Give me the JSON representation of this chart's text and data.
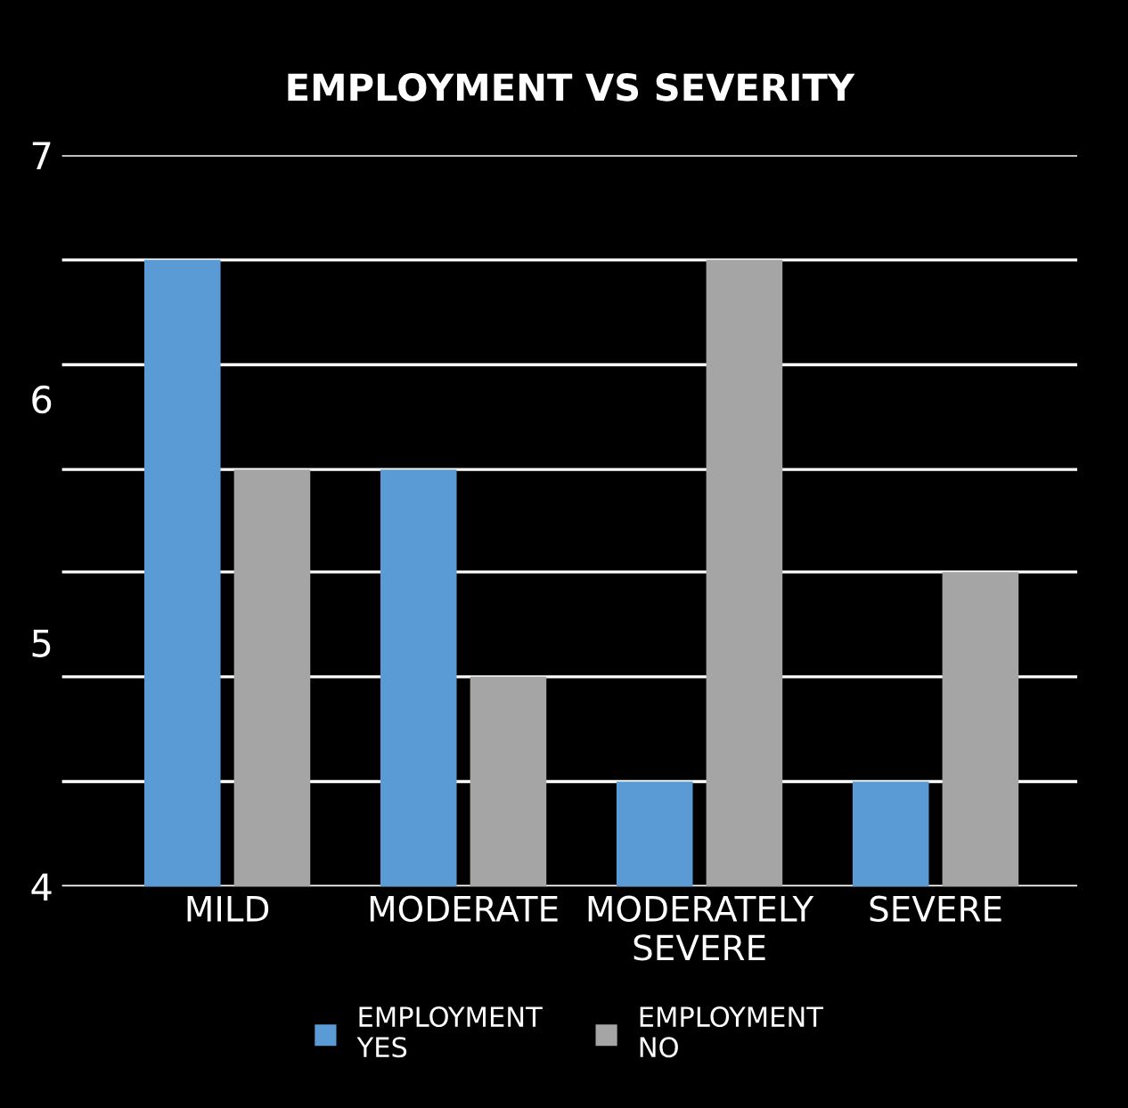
{
  "chart_data": {
    "type": "bar",
    "title": "EMPLOYMENT VS SEVERITY",
    "categories": [
      "MILD",
      "MODERATE",
      "MODERATELY\nSEVERE",
      "SEVERE"
    ],
    "series": [
      {
        "name": "EMPLOYMENT\nYES",
        "color": "#5b9bd5",
        "values": [
          6.57,
          5.71,
          4.43,
          4.43
        ]
      },
      {
        "name": "EMPLOYMENT\nNO",
        "color": "#a5a5a5",
        "values": [
          5.71,
          4.86,
          6.57,
          5.29
        ]
      }
    ],
    "ylim": [
      4,
      7
    ],
    "yticks": [
      4,
      {
        "value": 4.43,
        "label": null
      },
      {
        "value": 4.86,
        "label": null
      },
      5,
      {
        "value": 5.29,
        "label": null
      },
      {
        "value": 5.71,
        "label": null
      },
      6,
      {
        "value": 6.14,
        "label": null
      },
      {
        "value": 6.57,
        "label": null
      },
      7
    ],
    "grid": "y",
    "legend": "bottom"
  }
}
